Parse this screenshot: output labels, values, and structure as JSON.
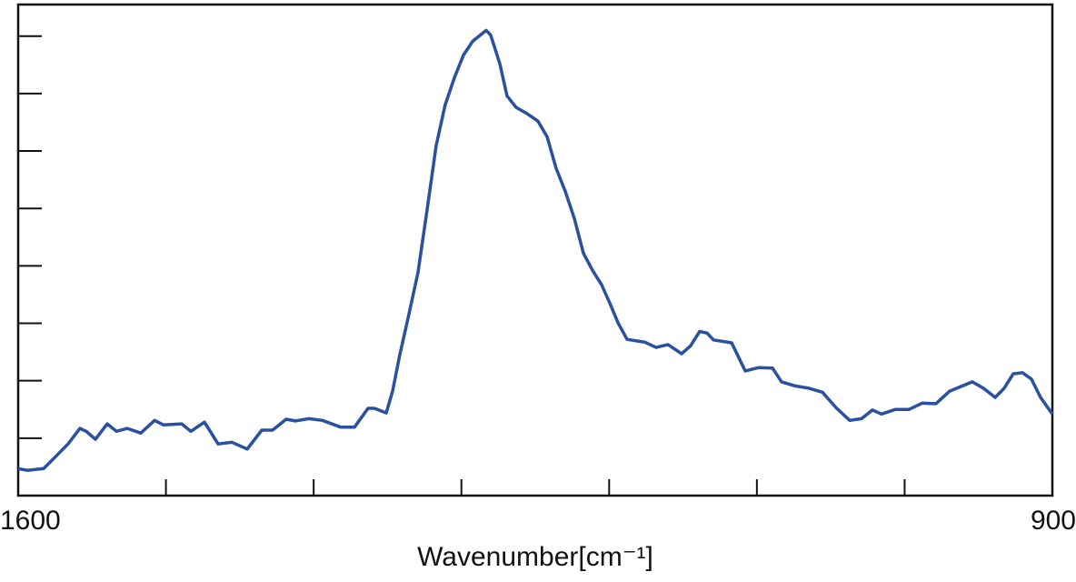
{
  "chart_data": {
    "type": "line",
    "xlabel": "Wavenumber[cm⁻¹]",
    "color": "#2a50a0",
    "xlim": [
      1600,
      900
    ],
    "xticks": [
      1600,
      {
        "value": 1500,
        "label": null
      },
      {
        "value": 1400,
        "label": null
      },
      {
        "value": 1300,
        "label": null
      },
      {
        "value": 1200,
        "label": null
      },
      {
        "value": 1100,
        "label": null
      },
      {
        "value": 1000,
        "label": null
      },
      900
    ],
    "ylim": [
      0,
      8.55
    ],
    "yticks": [
      1,
      2,
      3,
      4,
      5,
      6,
      7,
      8
    ],
    "x": [
      1600,
      1593.8,
      1582.8,
      1575.4,
      1566.2,
      1558.2,
      1553.9,
      1547.7,
      1539.7,
      1533.5,
      1526.2,
      1517.0,
      1507.7,
      1501.6,
      1489.3,
      1483.1,
      1473.9,
      1464.7,
      1455.4,
      1445.0,
      1435.1,
      1427.8,
      1418.6,
      1412.4,
      1403.2,
      1394.0,
      1381.6,
      1372.4,
      1363.2,
      1358.9,
      1350.9,
      1346.6,
      1341.7,
      1335.5,
      1329.4,
      1323.2,
      1317.1,
      1311.0,
      1304.7,
      1298.6,
      1292.4,
      1283.2,
      1280.2,
      1274.0,
      1269.1,
      1263.0,
      1255.5,
      1248.2,
      1242.0,
      1235.9,
      1229.7,
      1223.6,
      1217.4,
      1211.2,
      1205.1,
      1199.0,
      1194.0,
      1187.9,
      1175.6,
      1168.2,
      1160.2,
      1150.9,
      1144.8,
      1138.7,
      1133.7,
      1129.4,
      1117.1,
      1107.9,
      1098.7,
      1089.4,
      1083.3,
      1074.1,
      1064.9,
      1055.6,
      1046.4,
      1037.2,
      1029.2,
      1021.8,
      1015.7,
      1006.4,
      997.2,
      988.0,
      978.8,
      969.5,
      954.2,
      946.7,
      938.7,
      932.6,
      926.5,
      920.3,
      914.2,
      908.0,
      900
    ],
    "values": [
      0.47,
      0.44,
      0.47,
      0.66,
      0.9,
      1.17,
      1.12,
      0.98,
      1.25,
      1.12,
      1.17,
      1.09,
      1.31,
      1.23,
      1.25,
      1.12,
      1.28,
      0.9,
      0.93,
      0.81,
      1.14,
      1.14,
      1.33,
      1.3,
      1.34,
      1.31,
      1.19,
      1.19,
      1.52,
      1.52,
      1.44,
      1.82,
      2.45,
      3.16,
      3.88,
      4.98,
      6.09,
      6.8,
      7.28,
      7.67,
      7.91,
      8.1,
      8.02,
      7.52,
      6.96,
      6.76,
      6.65,
      6.52,
      6.25,
      5.7,
      5.3,
      4.83,
      4.22,
      3.92,
      3.67,
      3.32,
      3.01,
      2.72,
      2.67,
      2.58,
      2.63,
      2.47,
      2.61,
      2.86,
      2.83,
      2.71,
      2.66,
      2.17,
      2.23,
      2.22,
      1.98,
      1.91,
      1.87,
      1.8,
      1.53,
      1.31,
      1.34,
      1.49,
      1.42,
      1.5,
      1.5,
      1.61,
      1.6,
      1.82,
      1.98,
      1.87,
      1.71,
      1.87,
      2.12,
      2.14,
      2.03,
      1.71,
      1.42
    ]
  }
}
